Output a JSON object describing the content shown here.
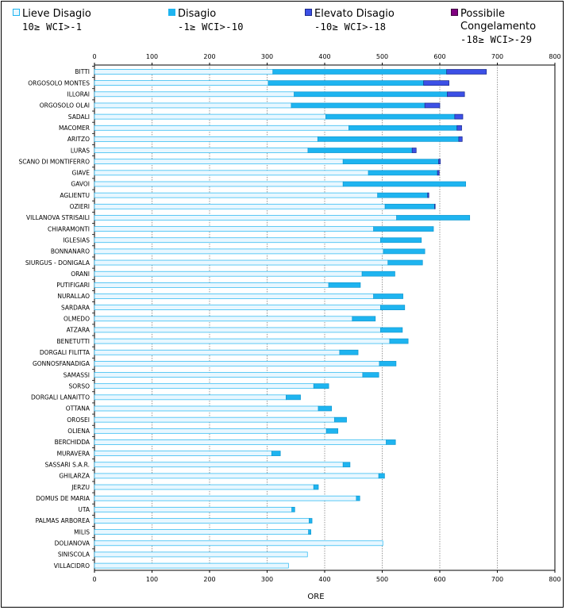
{
  "chart_data": {
    "type": "bar",
    "orientation": "horizontal",
    "stacked": true,
    "title": "",
    "xlabel": "ORE",
    "ylabel": "",
    "xlim": [
      0,
      800
    ],
    "xticks": [
      0,
      100,
      200,
      300,
      400,
      500,
      600,
      700,
      800
    ],
    "grid": true,
    "legend_position": "top",
    "legend": [
      {
        "name": "Lieve Disagio",
        "range": "10≥ WCI>-1",
        "color": "#e8f7ff"
      },
      {
        "name": "Disagio",
        "range": "-1≥ WCI>-10",
        "color": "#1eb4f0"
      },
      {
        "name": "Elevato Disagio",
        "range": "-10≥ WCI>-18",
        "color": "#3c50e6"
      },
      {
        "name": "Possibile Congelamento",
        "name_lines": [
          "Possibile",
          "Congelamento"
        ],
        "range": "-18≥ WCI>-29",
        "color": "#800080"
      }
    ],
    "categories": [
      "BITTI",
      "ORGOSOLO MONTES",
      "ILLORAI",
      "ORGOSOLO OLAI",
      "SADALI",
      "MACOMER",
      "ARITZO",
      "LURAS",
      "SCANO DI MONTIFERRO",
      "GIAVE",
      "GAVOI",
      "AGLIENTU",
      "OZIERI",
      "VILLANOVA STRISAILI",
      "CHIARAMONTI",
      "IGLESIAS",
      "BONNANARO",
      "SIURGUS - DONIGALA",
      "ORANI",
      "PUTIFIGARI",
      "NURALLAO",
      "SARDARA",
      "OLMEDO",
      "ATZARA",
      "BENETUTTI",
      "DORGALI FILITTA",
      "GONNOSFANADIGA",
      "SAMASSI",
      "SORSO",
      "DORGALI LANAITTO",
      "OTTANA",
      "OROSEI",
      "OLIENA",
      "BERCHIDDA",
      "MURAVERA",
      "SASSARI S.A.R.",
      "GHILARZA",
      "JERZU",
      "DOMUS DE MARIA",
      "UTA",
      "PALMAS ARBOREA",
      "MILIS",
      "DOLIANOVA",
      "SINISCOLA",
      "VILLACIDRO"
    ],
    "series": [
      {
        "name": "Lieve Disagio",
        "values": [
          310,
          302,
          347,
          342,
          402,
          442,
          388,
          371,
          432,
          476,
          432,
          492,
          505,
          525,
          485,
          497,
          502,
          510,
          465,
          407,
          485,
          497,
          448,
          497,
          513,
          426,
          495,
          466,
          381,
          333,
          389,
          417,
          403,
          507,
          308,
          432,
          494,
          381,
          455,
          343,
          373,
          372,
          501,
          370,
          337
        ]
      },
      {
        "name": "Disagio",
        "values": [
          302,
          270,
          266,
          232,
          224,
          188,
          245,
          181,
          166,
          120,
          213,
          87,
          86,
          127,
          104,
          71,
          72,
          60,
          57,
          55,
          51,
          42,
          40,
          38,
          32,
          32,
          29,
          28,
          26,
          25,
          23,
          21,
          20,
          16,
          15,
          12,
          10,
          8,
          6,
          5,
          5,
          4,
          0,
          0,
          0
        ]
      },
      {
        "name": "Elevato Disagio",
        "values": [
          69,
          44,
          30,
          26,
          14,
          8,
          6,
          7,
          3,
          3,
          0,
          2,
          1,
          0,
          0,
          0,
          0,
          0,
          0,
          0,
          0,
          0,
          0,
          0,
          0,
          0,
          0,
          0,
          0,
          0,
          0,
          0,
          0,
          0,
          0,
          0,
          0,
          0,
          0,
          0,
          0,
          0,
          0,
          0,
          0
        ]
      },
      {
        "name": "Possibile Congelamento",
        "values": [
          0,
          0,
          0,
          0,
          0,
          0,
          0,
          0,
          0,
          0,
          0,
          0,
          0,
          0,
          0,
          0,
          0,
          0,
          0,
          0,
          0,
          0,
          0,
          0,
          0,
          0,
          0,
          0,
          0,
          0,
          0,
          0,
          0,
          0,
          0,
          0,
          0,
          0,
          0,
          0,
          0,
          0,
          0,
          0,
          0
        ]
      }
    ]
  }
}
